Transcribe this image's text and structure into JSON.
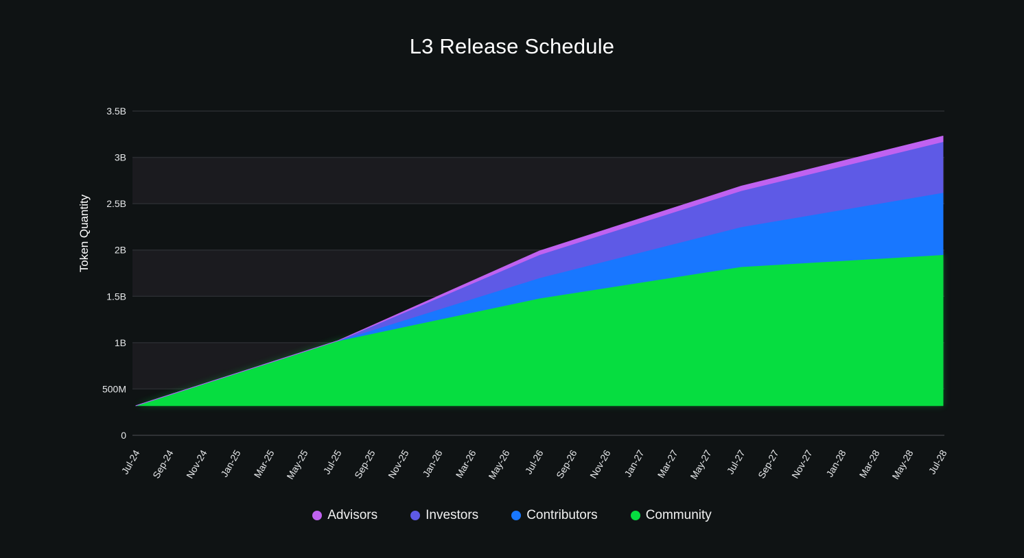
{
  "chart_data": {
    "type": "area",
    "stacked": true,
    "title": "L3 Release Schedule",
    "xlabel": "",
    "ylabel": "Token Quantity",
    "ylim": [
      0,
      3500000000
    ],
    "yticks": [
      0,
      500000000,
      1000000000,
      1500000000,
      2000000000,
      2500000000,
      3000000000,
      3500000000
    ],
    "ytick_labels": [
      "0",
      "500M",
      "1B",
      "1.5B",
      "2B",
      "2.5B",
      "3B",
      "3.5B"
    ],
    "categories": [
      "Jul-24",
      "Sep-24",
      "Nov-24",
      "Jan-25",
      "Mar-25",
      "May-25",
      "Jul-25",
      "Sep-25",
      "Nov-25",
      "Jan-26",
      "Mar-26",
      "May-26",
      "Jul-26",
      "Sep-26",
      "Nov-26",
      "Jan-27",
      "Mar-27",
      "May-27",
      "Jul-27",
      "Sep-27",
      "Nov-27",
      "Jan-28",
      "Mar-28",
      "May-28",
      "Jul-28"
    ],
    "x_month_index": [
      0,
      48
    ],
    "base": 320000000,
    "series": [
      {
        "name": "Community",
        "color": "#06dd40",
        "points": [
          [
            0,
            320000000
          ],
          [
            12,
            1020000000
          ],
          [
            24,
            1480000000
          ],
          [
            36,
            1820000000
          ],
          [
            48,
            1950000000
          ]
        ]
      },
      {
        "name": "Contributors",
        "color": "#1877ff",
        "points": [
          [
            0,
            0
          ],
          [
            12,
            0
          ],
          [
            24,
            220000000
          ],
          [
            36,
            430000000
          ],
          [
            48,
            670000000
          ]
        ]
      },
      {
        "name": "Investors",
        "color": "#5e5ae6",
        "points": [
          [
            0,
            0
          ],
          [
            12,
            0
          ],
          [
            24,
            250000000
          ],
          [
            36,
            390000000
          ],
          [
            48,
            550000000
          ]
        ]
      },
      {
        "name": "Advisors",
        "color": "#c062f0",
        "points": [
          [
            0,
            0
          ],
          [
            12,
            0
          ],
          [
            24,
            40000000
          ],
          [
            36,
            50000000
          ],
          [
            48,
            60000000
          ]
        ]
      }
    ],
    "grid": true,
    "legend_position": "bottom",
    "legend_order": [
      "Advisors",
      "Investors",
      "Contributors",
      "Community"
    ]
  }
}
